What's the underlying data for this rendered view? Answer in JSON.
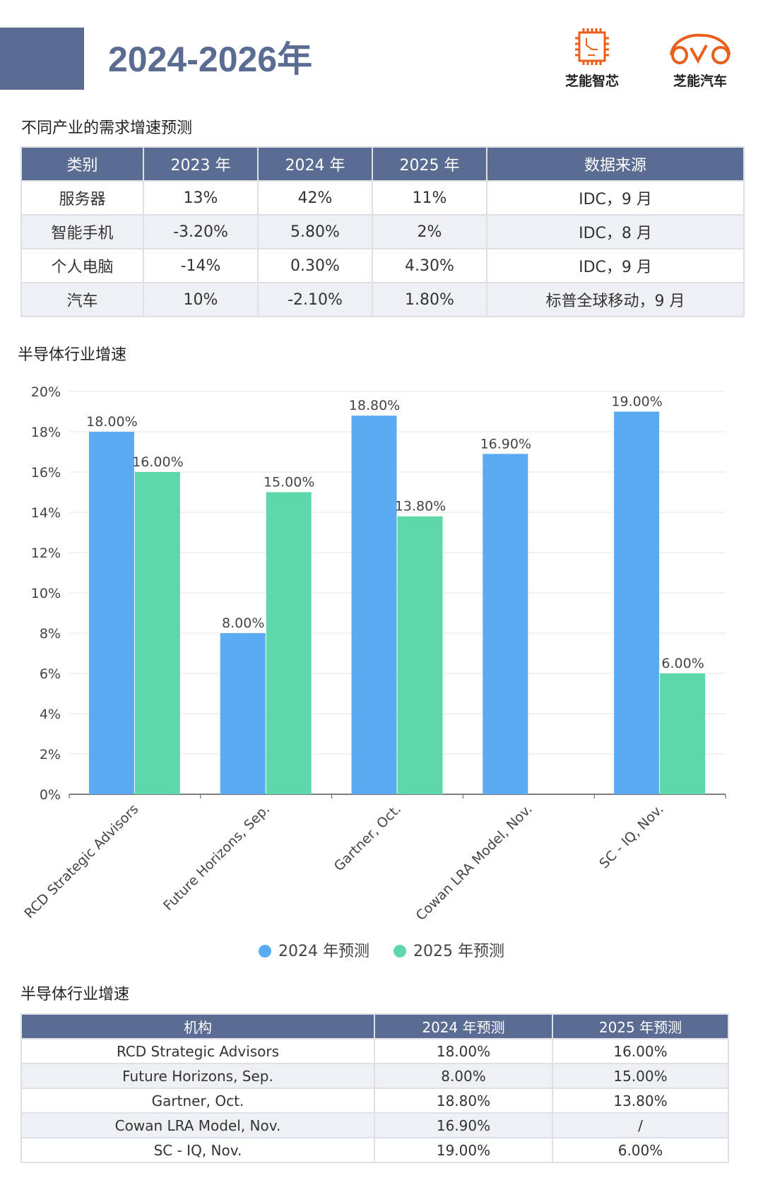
{
  "header": {
    "title": "2024-2026年",
    "logos": [
      {
        "text": "芝能智芯",
        "icon": "chip-icon"
      },
      {
        "text": "芝能汽车",
        "icon": "car-icon"
      }
    ],
    "accent": "#5b6c93",
    "logo_color": "#e8601c"
  },
  "table1": {
    "title": "不同产业的需求增速预测",
    "headers": [
      "类别",
      "2023 年",
      "2024 年",
      "2025 年",
      "数据来源"
    ],
    "rows": [
      [
        "服务器",
        "13%",
        "42%",
        "11%",
        "IDC，9 月"
      ],
      [
        "智能手机",
        "-3.20%",
        "5.80%",
        "2%",
        "IDC，8 月"
      ],
      [
        "个人电脑",
        "-14%",
        "0.30%",
        "4.30%",
        "IDC，9 月"
      ],
      [
        "汽车",
        "10%",
        "-2.10%",
        "1.80%",
        "标普全球移动，9 月"
      ]
    ]
  },
  "chart_section": {
    "title": "半导体行业增速"
  },
  "chart_data": {
    "type": "bar",
    "title": "半导体行业增速",
    "categories": [
      "RCD Strategic Advisors",
      "Future Horizons, Sep.",
      "Gartner, Oct.",
      "Cowan LRA Model, Nov.",
      "SC - IQ, Nov."
    ],
    "series": [
      {
        "name": "2024 年预测",
        "values": [
          18,
          8,
          18.8,
          16.9,
          19
        ],
        "labels": [
          "18.00%",
          "8.00%",
          "18.80%",
          "16.90%",
          "19.00%"
        ],
        "color": "#5aabf2"
      },
      {
        "name": "2025 年预测",
        "values": [
          16,
          15,
          13.8,
          null,
          6
        ],
        "labels": [
          "16.00%",
          "15.00%",
          "13.80%",
          "",
          "6.00%"
        ],
        "color": "#5dd8a8"
      }
    ],
    "yticks": [
      "0%",
      "2%",
      "4%",
      "6%",
      "8%",
      "10%",
      "12%",
      "14%",
      "16%",
      "18%",
      "20%"
    ],
    "ylim": [
      0,
      20
    ],
    "grid": true,
    "legend": "bottom"
  },
  "table2": {
    "title": "半导体行业增速",
    "headers": [
      "机构",
      "2024 年预测",
      "2025 年预测"
    ],
    "rows": [
      [
        "RCD Strategic Advisors",
        "18.00%",
        "16.00%"
      ],
      [
        "Future Horizons, Sep.",
        "8.00%",
        "15.00%"
      ],
      [
        "Gartner, Oct.",
        "18.80%",
        "13.80%"
      ],
      [
        "Cowan LRA Model, Nov.",
        "16.90%",
        "/"
      ],
      [
        "SC - IQ, Nov.",
        "19.00%",
        "6.00%"
      ]
    ]
  }
}
